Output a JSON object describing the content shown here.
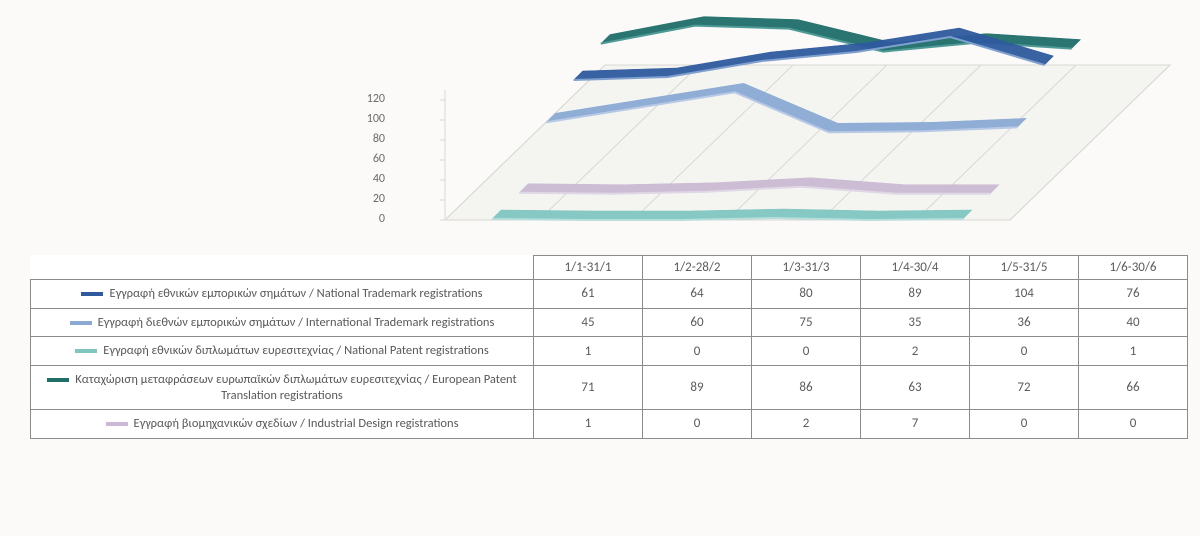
{
  "chart": {
    "type": "line-3d",
    "periods": [
      "1/1-31/1",
      "1/2-28/2",
      "1/3-31/3",
      "1/4-30/4",
      "1/5-31/5",
      "1/6-30/6"
    ],
    "ylim": [
      0,
      120
    ],
    "ytick_step": 20,
    "background_color": "#fbfaf8",
    "floor_color": "#f5f5f2",
    "floor_edge": "#d8d8d4",
    "grid_color": "#d8d8d4",
    "label_color": "#6a6a6a",
    "label_fontsize": 12,
    "series": [
      {
        "key": "national_trademark",
        "color": "#2e5a9e",
        "thin": "#7fa0cf",
        "values": [
          61,
          64,
          80,
          89,
          104,
          76
        ],
        "label": "Εγγραφή εθνικών εμπορικών σημάτων / National Trademark registrations"
      },
      {
        "key": "intl_trademark",
        "color": "#8aa9d4",
        "thin": "#b7c9e5",
        "values": [
          45,
          60,
          75,
          35,
          36,
          40
        ],
        "label": "Εγγραφή διεθνών εμπορικών σημάτων / International Trademark registrations"
      },
      {
        "key": "national_patent",
        "color": "#7fc5c0",
        "thin": "#b6dedb",
        "values": [
          1,
          0,
          0,
          2,
          0,
          1
        ],
        "label": "Εγγραφή εθνικών διπλωμάτων ευρεσιτεχνίας / National Patent registrations"
      },
      {
        "key": "euro_patent_trans",
        "color": "#1f6e6a",
        "thin": "#4f9a96",
        "values": [
          71,
          89,
          86,
          63,
          72,
          66
        ],
        "label": "Καταχώριση μεταφράσεων ευρωπαϊκών διπλωμάτων ευρεσιτεχνίας / European Patent Translation registrations"
      },
      {
        "key": "industrial_design",
        "color": "#c9b9d2",
        "thin": "#e0d7e6",
        "values": [
          1,
          0,
          2,
          7,
          0,
          0
        ],
        "label": "Εγγραφή βιομηχανικών σχεδίων / Industrial Design registrations"
      }
    ]
  }
}
